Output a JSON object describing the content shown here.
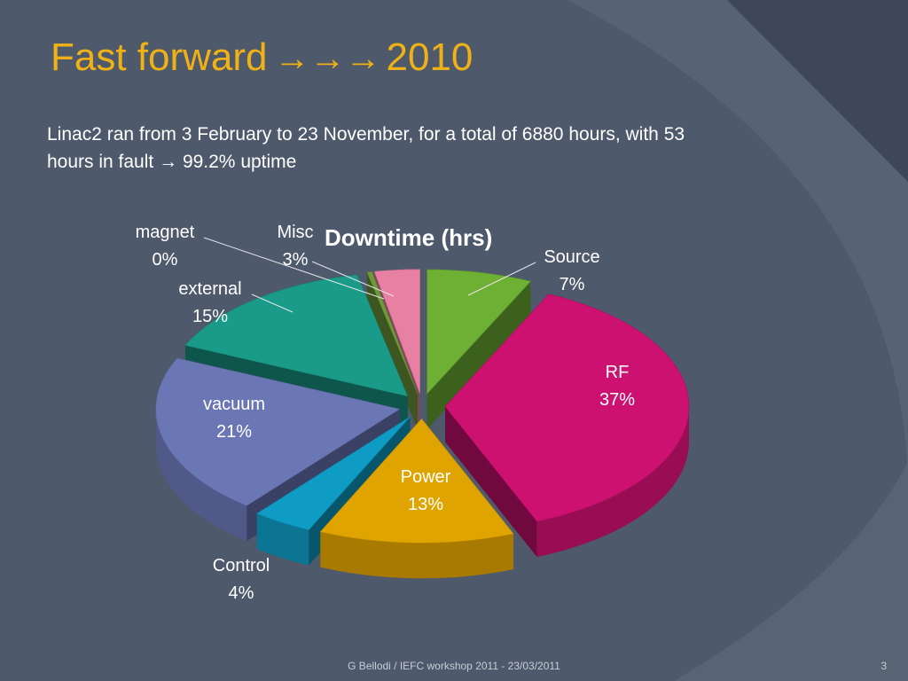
{
  "slide": {
    "title": "Fast forward",
    "title_arrows": "→→→",
    "title_year": "2010",
    "body_line1": "Linac2 ran from 3 February to 23 November, for a total of 6880 hours, with 53",
    "body_line2_prefix": "hours in fault",
    "body_arrow": "→",
    "body_line2_suffix": "99.2% uptime",
    "footer": "G Bellodi / IEFC workshop 2011 - 23/03/2011",
    "page_number": "3"
  },
  "chart_data": {
    "type": "pie",
    "title": "Downtime (hrs)",
    "categories": [
      "Source",
      "RF",
      "Power",
      "Control",
      "vacuum",
      "external",
      "magnet",
      "Misc"
    ],
    "values": [
      7,
      37,
      13,
      4,
      21,
      15,
      0,
      3
    ],
    "labels": [
      "7%",
      "37%",
      "13%",
      "4%",
      "21%",
      "15%",
      "0%",
      "3%"
    ],
    "colors": [
      "#6db033",
      "#cc1170",
      "#e0a400",
      "#0e9cc4",
      "#6b77b5",
      "#1a9a88",
      "#6e9a3a",
      "#e880a4"
    ],
    "legend": "none"
  }
}
